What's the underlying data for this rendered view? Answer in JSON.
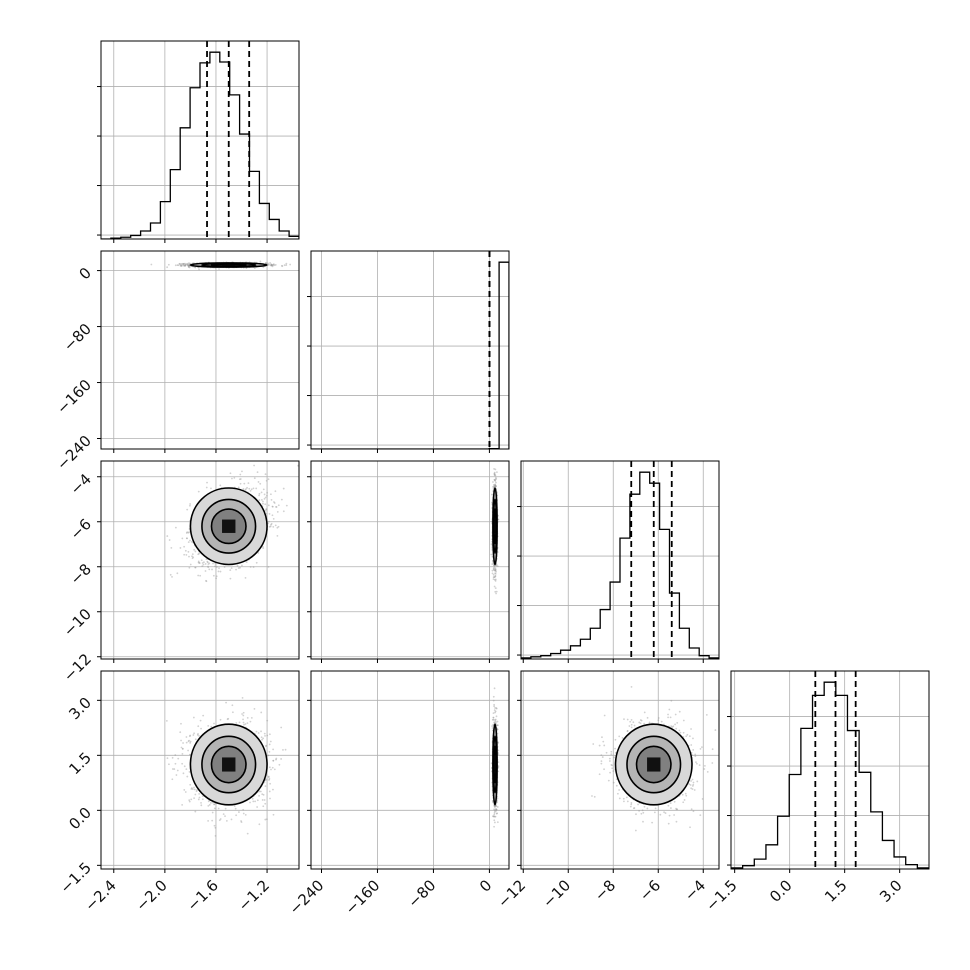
{
  "chart_data": {
    "type": "corner",
    "colors": {
      "line": "#000000",
      "grid": "#b0b0b0",
      "scatter": "#9a9a9a",
      "background": "#ffffff"
    },
    "grid": true,
    "parameters": [
      {
        "range": [
          -2.5,
          -0.95
        ],
        "ticks": [
          -2.4,
          -2.0,
          -1.6,
          -1.2
        ],
        "tick_labels": [
          "−2.4",
          "−2.0",
          "−1.6",
          "−1.2"
        ],
        "quantiles": [
          -1.67,
          -1.5,
          -1.34
        ],
        "mean": -1.5,
        "sd": 0.15
      },
      {
        "range": [
          -255,
          28
        ],
        "ticks": [
          -240,
          -160,
          -80,
          0
        ],
        "tick_labels": [
          "−240",
          "−160",
          "−80",
          "0"
        ],
        "quantiles": [
          0,
          0,
          0
        ],
        "mean": 8,
        "sd": 1.5
      },
      {
        "range": [
          -12.1,
          -3.3
        ],
        "ticks": [
          -12,
          -10,
          -8,
          -6,
          -4
        ],
        "tick_labels": [
          "−12",
          "−10",
          "−8",
          "−6",
          "−4"
        ],
        "quantiles": [
          -7.2,
          -6.2,
          -5.4
        ],
        "mean": -6.2,
        "sd": 0.85
      },
      {
        "range": [
          -1.6,
          3.8
        ],
        "ticks": [
          -1.5,
          0.0,
          1.5,
          3.0
        ],
        "tick_labels": [
          "−1.5",
          "0.0",
          "1.5",
          "3.0"
        ],
        "quantiles": [
          0.7,
          1.25,
          1.8
        ],
        "mean": 1.25,
        "sd": 0.55
      }
    ],
    "histograms": [
      {
        "param": 0,
        "counts": [
          0,
          1,
          2,
          4,
          9,
          18,
          42,
          78,
          125,
          170,
          198,
          210,
          199,
          162,
          118,
          76,
          40,
          22,
          9,
          3
        ]
      },
      {
        "param": 1,
        "counts": [
          0,
          0,
          0,
          0,
          0,
          0,
          0,
          0,
          0,
          0,
          0,
          0,
          0,
          0,
          0,
          0,
          0,
          0,
          1,
          600
        ]
      },
      {
        "param": 2,
        "counts": [
          1,
          2,
          3,
          5,
          8,
          12,
          18,
          28,
          45,
          70,
          110,
          150,
          170,
          160,
          118,
          60,
          28,
          10,
          3,
          1
        ]
      },
      {
        "param": 3,
        "counts": [
          1,
          3,
          9,
          22,
          48,
          86,
          128,
          158,
          170,
          158,
          126,
          88,
          52,
          26,
          11,
          4,
          1
        ]
      }
    ]
  }
}
